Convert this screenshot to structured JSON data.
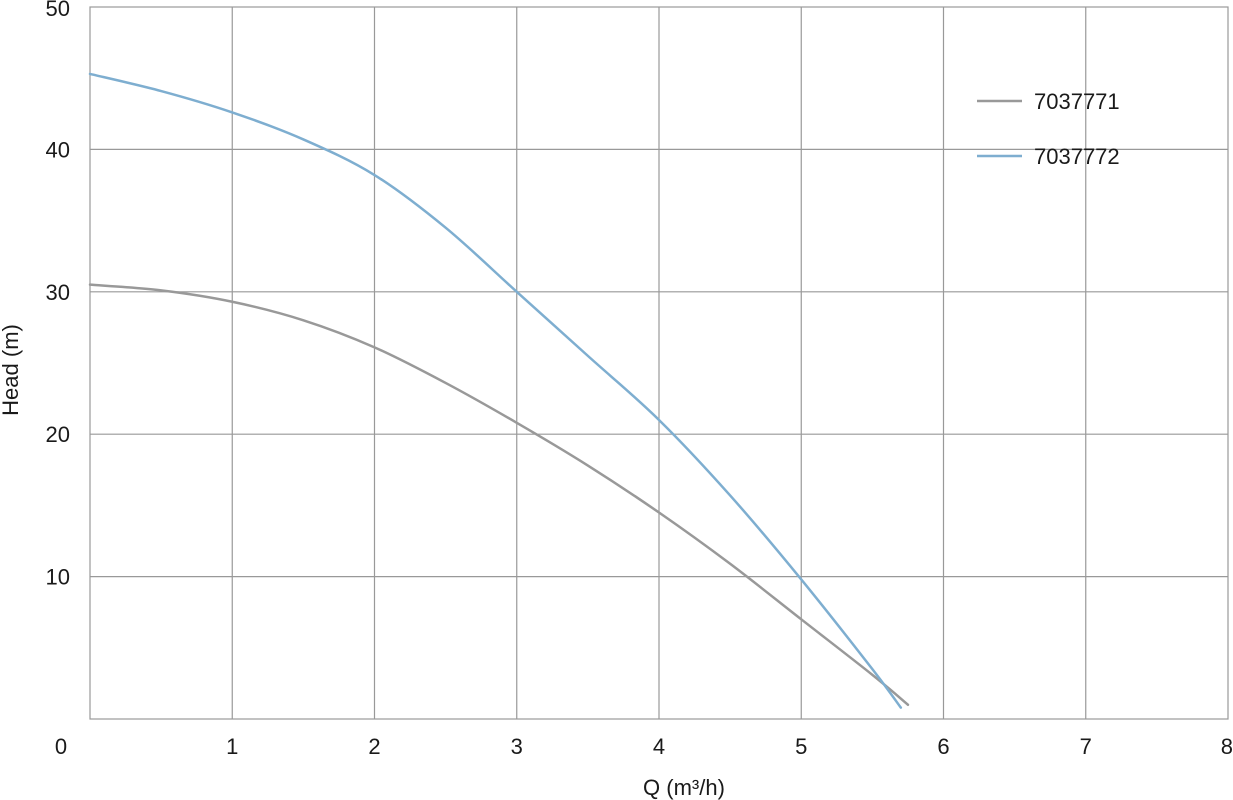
{
  "chart_data": {
    "type": "line",
    "title": "",
    "xlabel": "Q (m³/h)",
    "ylabel": "Head (m)",
    "xlim": [
      0,
      8
    ],
    "ylim": [
      0,
      50
    ],
    "x_ticks": [
      "0",
      "1",
      "2",
      "3",
      "4",
      "5",
      "6",
      "7",
      "8"
    ],
    "y_ticks": [
      "10",
      "20",
      "30",
      "40",
      "50"
    ],
    "grid": true,
    "legend_position": "top-right",
    "series": [
      {
        "name": "7037771",
        "color": "#999999",
        "x": [
          0,
          0.5,
          1,
          1.5,
          2,
          2.5,
          3,
          3.5,
          4,
          4.5,
          5,
          5.5,
          5.75
        ],
        "y": [
          30.5,
          30.1,
          29.3,
          28.0,
          26.1,
          23.6,
          20.8,
          17.8,
          14.5,
          10.9,
          7.0,
          3.1,
          1.0
        ]
      },
      {
        "name": "7037772",
        "color": "#7eaed0",
        "x": [
          0,
          0.5,
          1,
          1.5,
          2,
          2.5,
          3,
          3.5,
          4,
          4.5,
          5,
          5.5,
          5.7
        ],
        "y": [
          45.3,
          44.1,
          42.6,
          40.7,
          38.2,
          34.5,
          30.0,
          25.5,
          21.0,
          15.7,
          9.8,
          3.5,
          0.8
        ]
      }
    ]
  }
}
